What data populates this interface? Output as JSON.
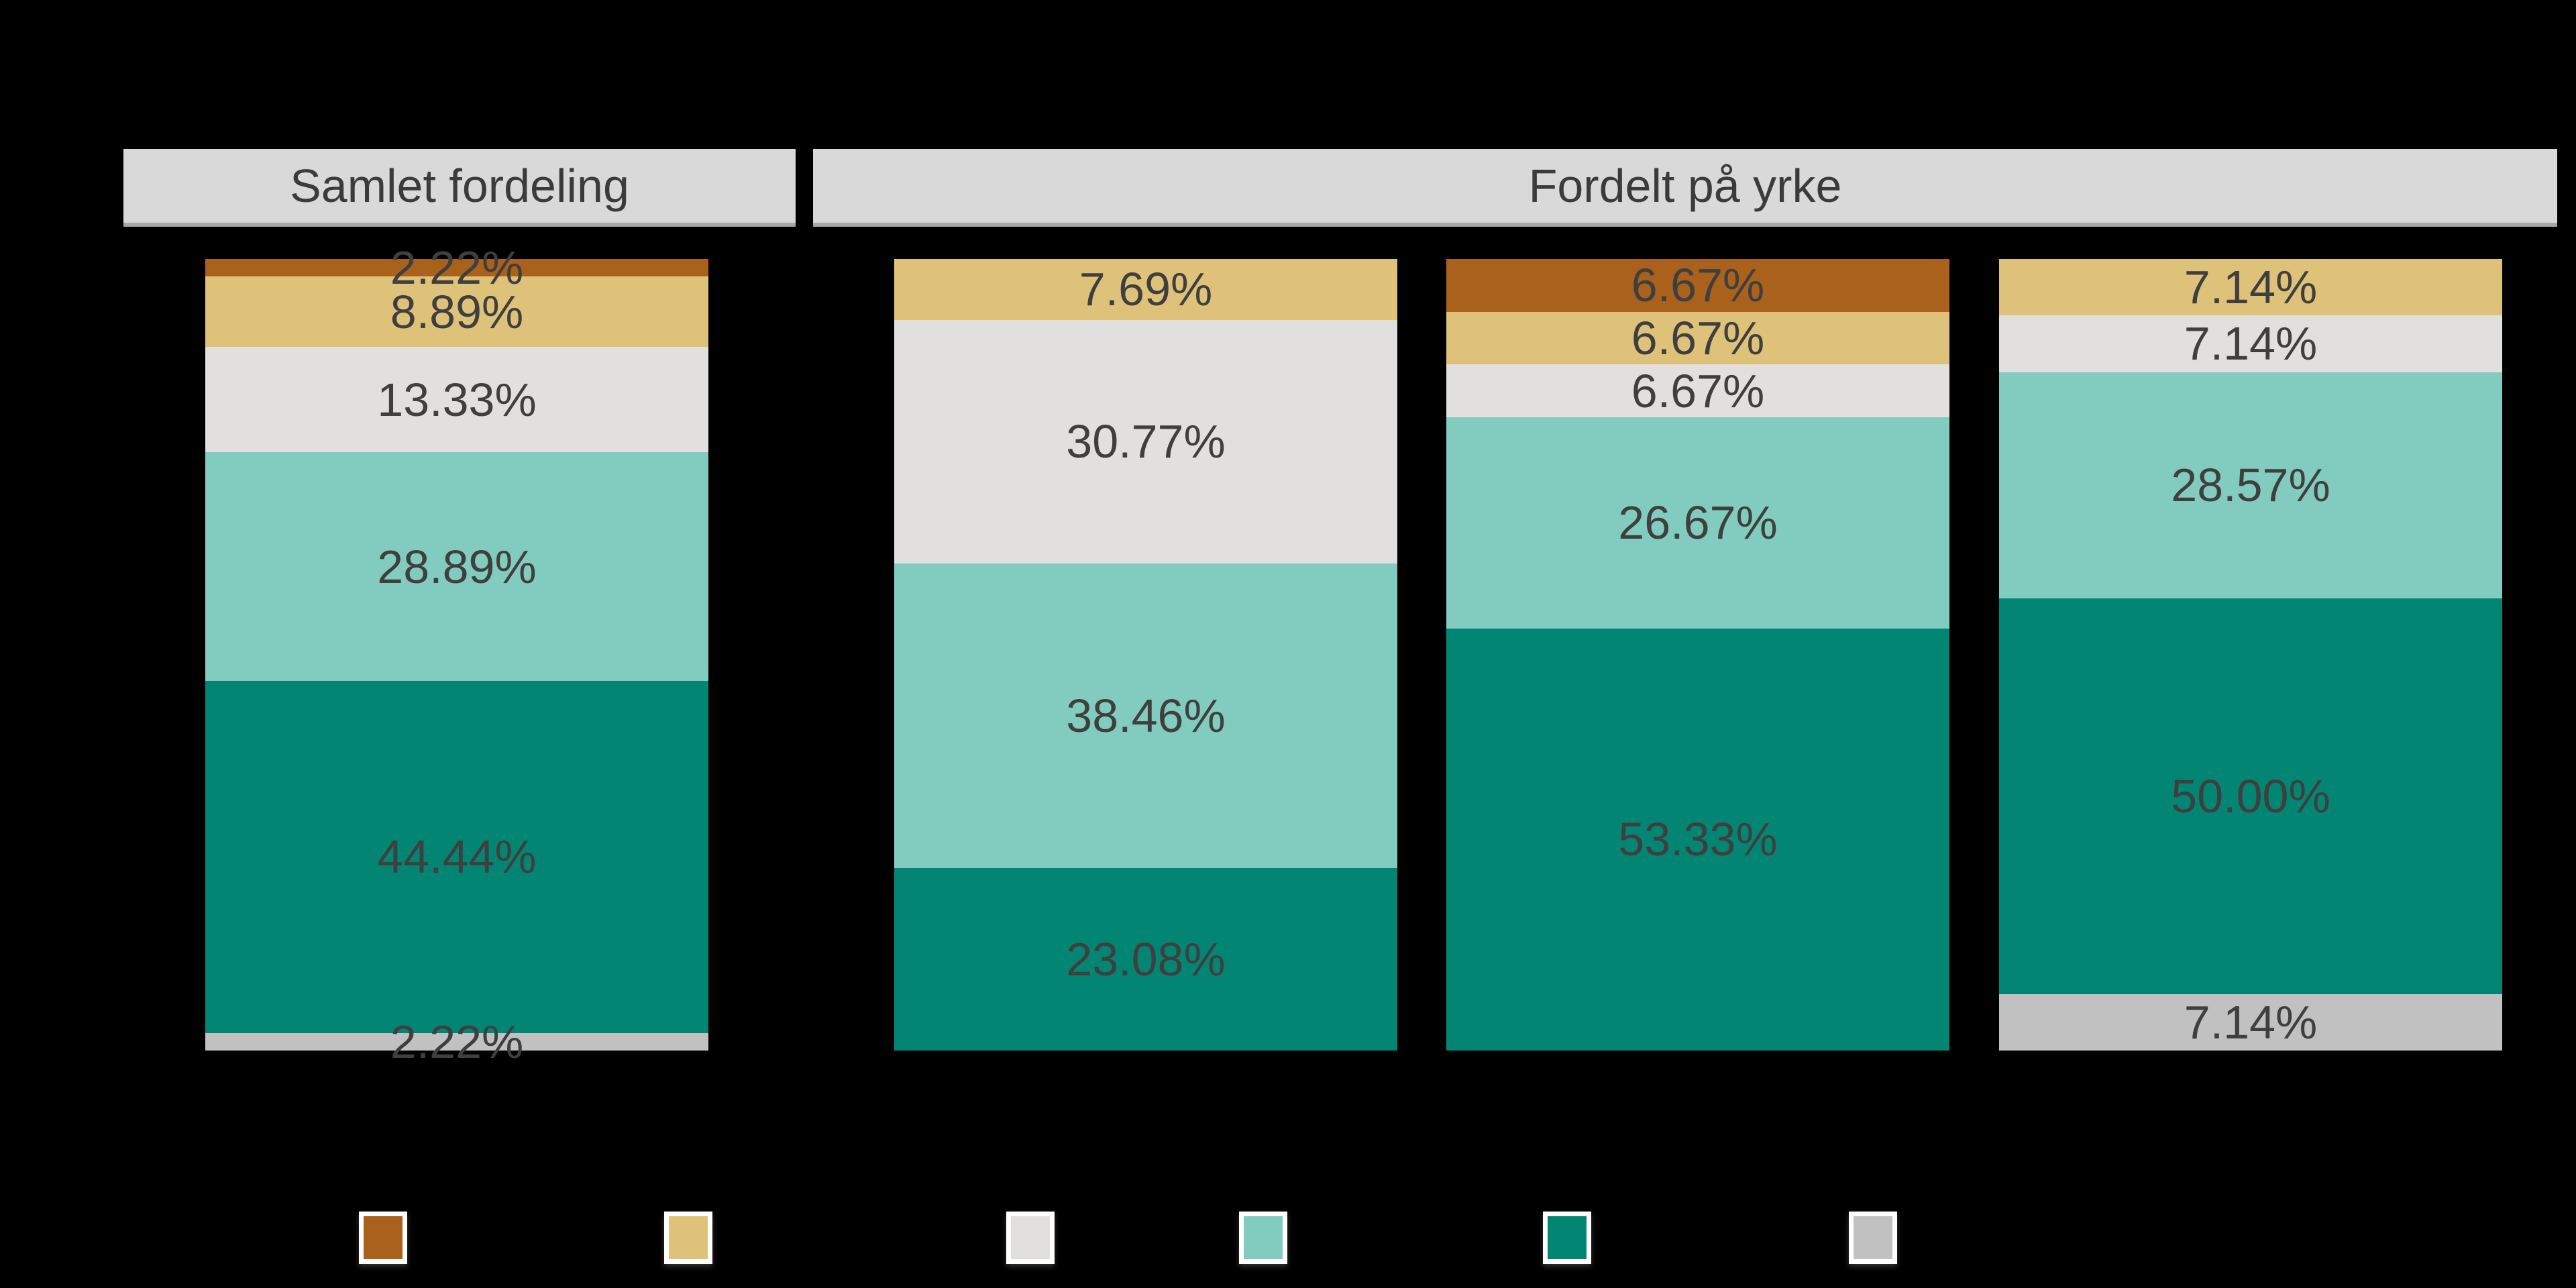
{
  "background_color": "#000000",
  "label_text_color": "#3F3F3F",
  "facet_header_bg": "#D9D9D9",
  "chart_data": {
    "type": "bar",
    "subtype": "100-percent-stacked-columns",
    "orientation": "vertical",
    "unit": "%",
    "axes_visible": false,
    "grid": false,
    "value_labels_position": "inside-center",
    "facets": [
      {
        "title": "Samlet fordeling",
        "bars": [
          {
            "segments": [
              {
                "color": "brown",
                "value": 2.22,
                "label": "2.22%"
              },
              {
                "color": "tan",
                "value": 8.89,
                "label": "8.89%"
              },
              {
                "color": "light_gray",
                "value": 13.33,
                "label": "13.33%"
              },
              {
                "color": "light_teal",
                "value": 28.89,
                "label": "28.89%"
              },
              {
                "color": "dark_teal",
                "value": 44.44,
                "label": "44.44%"
              },
              {
                "color": "gray",
                "value": 2.22,
                "label": "2.22%"
              }
            ]
          }
        ]
      },
      {
        "title": "Fordelt på yrke",
        "bars": [
          {
            "segments": [
              {
                "color": "tan",
                "value": 7.69,
                "label": "7.69%"
              },
              {
                "color": "light_gray",
                "value": 30.77,
                "label": "30.77%"
              },
              {
                "color": "light_teal",
                "value": 38.46,
                "label": "38.46%"
              },
              {
                "color": "dark_teal",
                "value": 23.08,
                "label": "23.08%"
              }
            ]
          },
          {
            "segments": [
              {
                "color": "brown",
                "value": 6.67,
                "label": "6.67%"
              },
              {
                "color": "tan",
                "value": 6.67,
                "label": "6.67%"
              },
              {
                "color": "light_gray",
                "value": 6.67,
                "label": "6.67%"
              },
              {
                "color": "light_teal",
                "value": 26.67,
                "label": "26.67%"
              },
              {
                "color": "dark_teal",
                "value": 53.33,
                "label": "53.33%"
              }
            ]
          },
          {
            "segments": [
              {
                "color": "tan",
                "value": 7.14,
                "label": "7.14%"
              },
              {
                "color": "light_gray",
                "value": 7.14,
                "label": "7.14%"
              },
              {
                "color": "light_teal",
                "value": 28.57,
                "label": "28.57%"
              },
              {
                "color": "dark_teal",
                "value": 50.0,
                "label": "50.00%"
              },
              {
                "color": "gray",
                "value": 7.14,
                "label": "7.14%"
              }
            ]
          }
        ]
      }
    ],
    "palette": {
      "brown": "#A9611B",
      "tan": "#DFC279",
      "light_gray": "#E2E0DE",
      "light_teal": "#81CCBE",
      "dark_teal": "#028673",
      "gray": "#C1C1C1"
    },
    "legend": {
      "position": "bottom",
      "labels_visible": false,
      "swatches": [
        "brown",
        "tan",
        "light_gray",
        "light_teal",
        "dark_teal",
        "gray"
      ]
    }
  }
}
